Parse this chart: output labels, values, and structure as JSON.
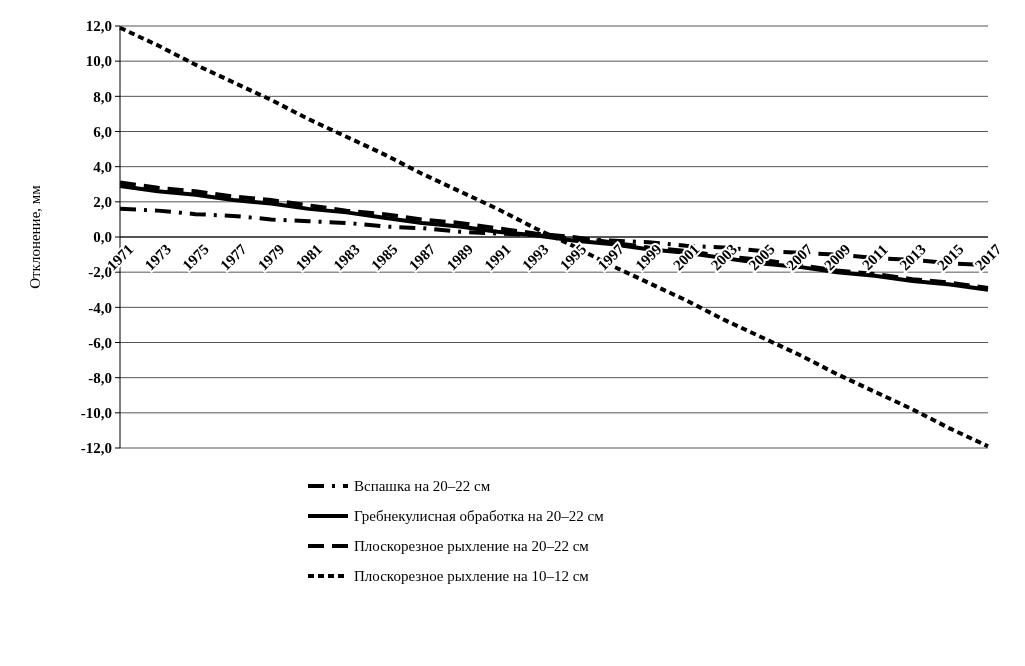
{
  "chart_data": {
    "type": "line",
    "ylabel": "Отклонение, мм",
    "categories": [
      "1971",
      "1973",
      "1975",
      "1977",
      "1979",
      "1981",
      "1983",
      "1985",
      "1987",
      "1989",
      "1991",
      "1993",
      "1995",
      "1997",
      "1999",
      "2001",
      "2003",
      "2005",
      "2007",
      "2009",
      "2011",
      "2013",
      "2015",
      "2017"
    ],
    "ylim": [
      -12,
      12
    ],
    "yticks": [
      {
        "value": 12,
        "label": "12,0"
      },
      {
        "value": 10,
        "label": "10,0"
      },
      {
        "value": 8,
        "label": "8,0"
      },
      {
        "value": 6,
        "label": "6,0"
      },
      {
        "value": 4,
        "label": "4,0"
      },
      {
        "value": 2,
        "label": "2,0"
      },
      {
        "value": 0,
        "label": "0,0"
      },
      {
        "value": -2,
        "label": "-2,0"
      },
      {
        "value": -4,
        "label": "-4,0"
      },
      {
        "value": -6,
        "label": "-6,0"
      },
      {
        "value": -8,
        "label": "-8,0"
      },
      {
        "value": -10,
        "label": "-10,0"
      },
      {
        "value": -12,
        "label": "-12,0"
      }
    ],
    "grid": "y",
    "legend": "bottom",
    "marker": "none",
    "series": [
      {
        "name": "Вспашка на 20–22 см",
        "color": "#000000",
        "line_style": "dashdot",
        "values": [
          1.6,
          1.5,
          1.3,
          1.2,
          1.0,
          0.9,
          0.8,
          0.6,
          0.5,
          0.3,
          0.2,
          0.1,
          -0.1,
          -0.2,
          -0.3,
          -0.5,
          -0.6,
          -0.8,
          -0.9,
          -1.0,
          -1.2,
          -1.3,
          -1.5,
          -1.6
        ]
      },
      {
        "name": "Гребнекулисная обработка на 20–22 см",
        "color": "#000000",
        "line_style": "solid",
        "values": [
          2.9,
          2.6,
          2.4,
          2.1,
          1.9,
          1.6,
          1.4,
          1.1,
          0.8,
          0.6,
          0.3,
          0.1,
          -0.2,
          -0.4,
          -0.7,
          -0.9,
          -1.2,
          -1.5,
          -1.7,
          -2.0,
          -2.2,
          -2.5,
          -2.7,
          -3.0
        ]
      },
      {
        "name": "Плоскорезное рыхление на 20–22 см",
        "color": "#000000",
        "line_style": "dashed",
        "values": [
          3.1,
          2.8,
          2.6,
          2.3,
          2.1,
          1.8,
          1.5,
          1.3,
          1.0,
          0.8,
          0.5,
          0.2,
          0.0,
          -0.3,
          -0.6,
          -0.8,
          -1.1,
          -1.3,
          -1.6,
          -1.9,
          -2.1,
          -2.4,
          -2.6,
          -2.9
        ]
      },
      {
        "name": "Плоскорезное рыхление на 10–12 см",
        "color": "#000000",
        "line_style": "dotted",
        "values": [
          11.9,
          10.9,
          9.8,
          8.8,
          7.8,
          6.7,
          5.7,
          4.7,
          3.6,
          2.6,
          1.6,
          0.5,
          -0.5,
          -1.6,
          -2.6,
          -3.6,
          -4.7,
          -5.7,
          -6.7,
          -7.8,
          -8.8,
          -9.8,
          -10.9,
          -11.9
        ]
      }
    ]
  }
}
